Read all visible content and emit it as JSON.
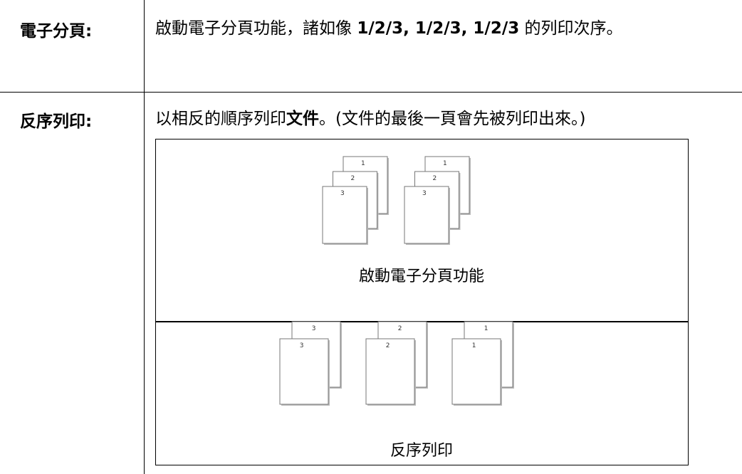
{
  "rows": [
    {
      "label": "電子分頁:",
      "description": [
        "啟動電子分頁功能，諸如像 ",
        "1/2/3, 1/2/3, 1/2/3",
        " 的列印次序。"
      ]
    },
    {
      "label": "反序列印:",
      "description": [
        "以相反的順序列印",
        "文件",
        "。(文件的最後一頁會先被列印出來。)"
      ]
    }
  ],
  "figures": [
    {
      "stacks": [
        [
          "1",
          "2",
          "3"
        ],
        [
          "1",
          "2",
          "3"
        ]
      ],
      "caption": "啟動電子分頁功能"
    },
    {
      "stacks": [
        [
          "3",
          "3"
        ],
        [
          "2",
          "2"
        ],
        [
          "1",
          "1"
        ]
      ],
      "caption": "反序列印"
    }
  ]
}
